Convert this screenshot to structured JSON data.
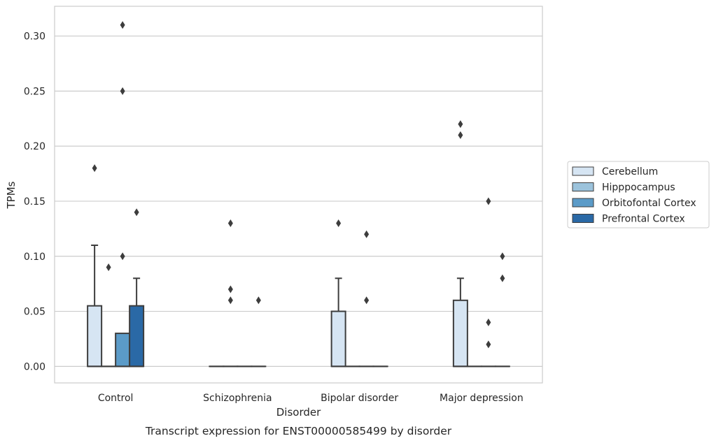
{
  "caption": "Transcript expression for ENST00000585499 by disorder",
  "chart_data": {
    "type": "box",
    "xlabel": "Disorder",
    "ylabel": "TPMs",
    "ylim": [
      -0.015,
      0.327
    ],
    "yticks": [
      0.0,
      0.05,
      0.1,
      0.15,
      0.2,
      0.25,
      0.3
    ],
    "ytick_labels": [
      "0.00",
      "0.05",
      "0.10",
      "0.15",
      "0.20",
      "0.25",
      "0.30"
    ],
    "grid": "horizontal",
    "legend_position": "right",
    "categories": [
      "Control",
      "Schizophrenia",
      "Bipolar disorder",
      "Major depression"
    ],
    "series": [
      {
        "name": "Cerebellum",
        "color": "#d6e5f3",
        "boxes": [
          {
            "q1": 0.0,
            "median": 0.0,
            "q3": 0.055,
            "whisker_low": 0.0,
            "whisker_high": 0.11,
            "outliers": [
              0.18
            ]
          },
          {
            "q1": 0.0,
            "median": 0.0,
            "q3": 0.0,
            "whisker_low": 0.0,
            "whisker_high": 0.0,
            "outliers": []
          },
          {
            "q1": 0.0,
            "median": 0.0,
            "q3": 0.05,
            "whisker_low": 0.0,
            "whisker_high": 0.08,
            "outliers": [
              0.13
            ]
          },
          {
            "q1": 0.0,
            "median": 0.0,
            "q3": 0.06,
            "whisker_low": 0.0,
            "whisker_high": 0.08,
            "outliers": [
              0.22,
              0.21
            ]
          }
        ]
      },
      {
        "name": "Hipppocampus",
        "color": "#9cc3dc",
        "boxes": [
          {
            "q1": 0.0,
            "median": 0.0,
            "q3": 0.0,
            "whisker_low": 0.0,
            "whisker_high": 0.0,
            "outliers": [
              0.09
            ]
          },
          {
            "q1": 0.0,
            "median": 0.0,
            "q3": 0.0,
            "whisker_low": 0.0,
            "whisker_high": 0.0,
            "outliers": [
              0.13,
              0.07,
              0.06
            ]
          },
          {
            "q1": 0.0,
            "median": 0.0,
            "q3": 0.0,
            "whisker_low": 0.0,
            "whisker_high": 0.0,
            "outliers": []
          },
          {
            "q1": 0.0,
            "median": 0.0,
            "q3": 0.0,
            "whisker_low": 0.0,
            "whisker_high": 0.0,
            "outliers": []
          }
        ]
      },
      {
        "name": "Orbitofontal Cortex",
        "color": "#5b9bc8",
        "boxes": [
          {
            "q1": 0.0,
            "median": 0.0,
            "q3": 0.03,
            "whisker_low": 0.0,
            "whisker_high": 0.03,
            "outliers": [
              0.31,
              0.25,
              0.1
            ]
          },
          {
            "q1": 0.0,
            "median": 0.0,
            "q3": 0.0,
            "whisker_low": 0.0,
            "whisker_high": 0.0,
            "outliers": []
          },
          {
            "q1": 0.0,
            "median": 0.0,
            "q3": 0.0,
            "whisker_low": 0.0,
            "whisker_high": 0.0,
            "outliers": [
              0.12,
              0.06
            ]
          },
          {
            "q1": 0.0,
            "median": 0.0,
            "q3": 0.0,
            "whisker_low": 0.0,
            "whisker_high": 0.0,
            "outliers": [
              0.15,
              0.04,
              0.02
            ]
          }
        ]
      },
      {
        "name": "Prefrontal Cortex",
        "color": "#2a69a6",
        "boxes": [
          {
            "q1": 0.0,
            "median": 0.0,
            "q3": 0.055,
            "whisker_low": 0.0,
            "whisker_high": 0.08,
            "outliers": [
              0.14
            ]
          },
          {
            "q1": 0.0,
            "median": 0.0,
            "q3": 0.0,
            "whisker_low": 0.0,
            "whisker_high": 0.0,
            "outliers": [
              0.06
            ]
          },
          {
            "q1": 0.0,
            "median": 0.0,
            "q3": 0.0,
            "whisker_low": 0.0,
            "whisker_high": 0.0,
            "outliers": []
          },
          {
            "q1": 0.0,
            "median": 0.0,
            "q3": 0.0,
            "whisker_low": 0.0,
            "whisker_high": 0.0,
            "outliers": [
              0.1,
              0.08
            ]
          }
        ]
      }
    ]
  }
}
